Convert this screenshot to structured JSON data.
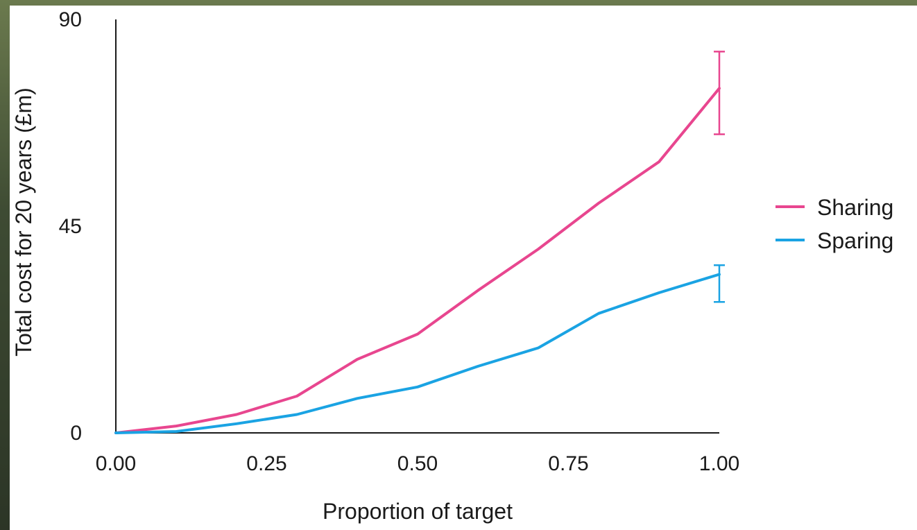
{
  "chart_data": {
    "type": "line",
    "xlabel": "Proportion of target",
    "ylabel": "Total cost for 20 years (£m)",
    "xlim": [
      0,
      1
    ],
    "ylim": [
      0,
      90
    ],
    "x_ticks": [
      "0.00",
      "0.25",
      "0.50",
      "0.75",
      "1.00"
    ],
    "x_tick_values": [
      0,
      0.25,
      0.5,
      0.75,
      1.0
    ],
    "y_ticks": [
      "0",
      "45",
      "90"
    ],
    "y_tick_values": [
      0,
      45,
      90
    ],
    "grid": false,
    "legend_position": "right",
    "series": [
      {
        "name": "Sharing",
        "color": "#e8468f",
        "x": [
          0,
          0.1,
          0.2,
          0.3,
          0.4,
          0.5,
          0.6,
          0.7,
          0.8,
          0.9,
          1.0
        ],
        "y": [
          0,
          1.5,
          4,
          8,
          16,
          21.5,
          31,
          40,
          50,
          59,
          75
        ],
        "error_x": 1.0,
        "error_low": 65,
        "error_high": 83
      },
      {
        "name": "Sparing",
        "color": "#1aa3e3",
        "x": [
          0,
          0.1,
          0.2,
          0.3,
          0.4,
          0.5,
          0.6,
          0.7,
          0.8,
          0.9,
          1.0
        ],
        "y": [
          0,
          0.3,
          2,
          4,
          7.5,
          10,
          14.5,
          18.5,
          26,
          30.5,
          34.5
        ],
        "error_x": 1.0,
        "error_low": 28.5,
        "error_high": 36.5
      }
    ]
  }
}
